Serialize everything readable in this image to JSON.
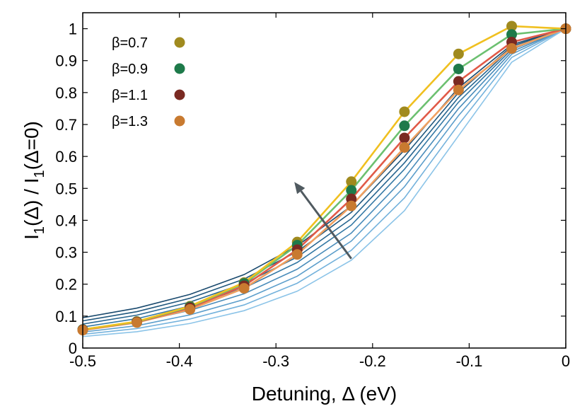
{
  "chart_data": {
    "type": "line",
    "xlabel": "Detuning, Δ (eV)",
    "ylabel_parts": [
      "I",
      "1",
      "(Δ) / I",
      "1",
      "(Δ=0)"
    ],
    "xlim": [
      -0.5,
      0
    ],
    "ylim": [
      0,
      1.05
    ],
    "x_ticks": [
      -0.5,
      -0.4,
      -0.3,
      -0.2,
      -0.1,
      0
    ],
    "x_tick_labels": [
      "-0.5",
      "-0.4",
      "-0.3",
      "-0.2",
      "-0.1",
      "0"
    ],
    "y_ticks": [
      0,
      0.1,
      0.2,
      0.3,
      0.4,
      0.5,
      0.6,
      0.7,
      0.8,
      0.9,
      1
    ],
    "y_tick_labels": [
      "0",
      "0.1",
      "0.2",
      "0.3",
      "0.4",
      "0.5",
      "0.6",
      "0.7",
      "0.8",
      "0.9",
      "1"
    ],
    "legend_position": "top-left",
    "x": [
      -0.5,
      -0.444,
      -0.389,
      -0.333,
      -0.278,
      -0.222,
      -0.167,
      -0.111,
      -0.056,
      0
    ],
    "marker_series": [
      {
        "name": "β=0.7",
        "color": "#a08a1e",
        "line_color": "#f0c020",
        "values": [
          0.058,
          0.083,
          0.131,
          0.205,
          0.332,
          0.521,
          0.74,
          0.921,
          1.008,
          1.0
        ]
      },
      {
        "name": "β=0.9",
        "color": "#1e7a4a",
        "line_color": "#6cc070",
        "values": [
          0.058,
          0.082,
          0.129,
          0.202,
          0.322,
          0.494,
          0.696,
          0.874,
          0.982,
          1.0
        ]
      },
      {
        "name": "β=1.1",
        "color": "#7a2a22",
        "line_color": "#e05a48",
        "values": [
          0.057,
          0.081,
          0.126,
          0.195,
          0.308,
          0.467,
          0.658,
          0.835,
          0.958,
          1.0
        ]
      },
      {
        "name": "β=1.3",
        "color": "#c87a30",
        "line_color": "#f0a060",
        "values": [
          0.056,
          0.08,
          0.121,
          0.187,
          0.293,
          0.445,
          0.628,
          0.808,
          0.938,
          1.0
        ]
      }
    ],
    "blue_curves": [
      {
        "color": "#1a4a6e",
        "values": [
          0.095,
          0.125,
          0.168,
          0.23,
          0.32,
          0.445,
          0.62,
          0.815,
          0.95,
          1.0
        ]
      },
      {
        "color": "#21587e",
        "values": [
          0.085,
          0.114,
          0.156,
          0.216,
          0.302,
          0.425,
          0.6,
          0.8,
          0.945,
          1.0
        ]
      },
      {
        "color": "#286690",
        "values": [
          0.075,
          0.103,
          0.144,
          0.202,
          0.285,
          0.405,
          0.58,
          0.785,
          0.94,
          1.0
        ]
      },
      {
        "color": "#3478a4",
        "values": [
          0.066,
          0.092,
          0.132,
          0.188,
          0.268,
          0.385,
          0.56,
          0.77,
          0.935,
          1.0
        ]
      },
      {
        "color": "#4a8cba",
        "values": [
          0.058,
          0.081,
          0.118,
          0.17,
          0.247,
          0.36,
          0.533,
          0.75,
          0.928,
          1.0
        ]
      },
      {
        "color": "#5c9ecb",
        "values": [
          0.05,
          0.07,
          0.104,
          0.152,
          0.225,
          0.335,
          0.505,
          0.728,
          0.92,
          1.0
        ]
      },
      {
        "color": "#74b2dc",
        "values": [
          0.043,
          0.061,
          0.091,
          0.135,
          0.203,
          0.306,
          0.47,
          0.7,
          0.91,
          1.0
        ]
      },
      {
        "color": "#8cc4e8",
        "values": [
          0.036,
          0.051,
          0.077,
          0.117,
          0.178,
          0.275,
          0.43,
          0.665,
          0.895,
          1.0
        ]
      }
    ],
    "arrow": {
      "from": [
        -0.222,
        0.28
      ],
      "to": [
        -0.281,
        0.52
      ],
      "color": "#505a60"
    }
  }
}
